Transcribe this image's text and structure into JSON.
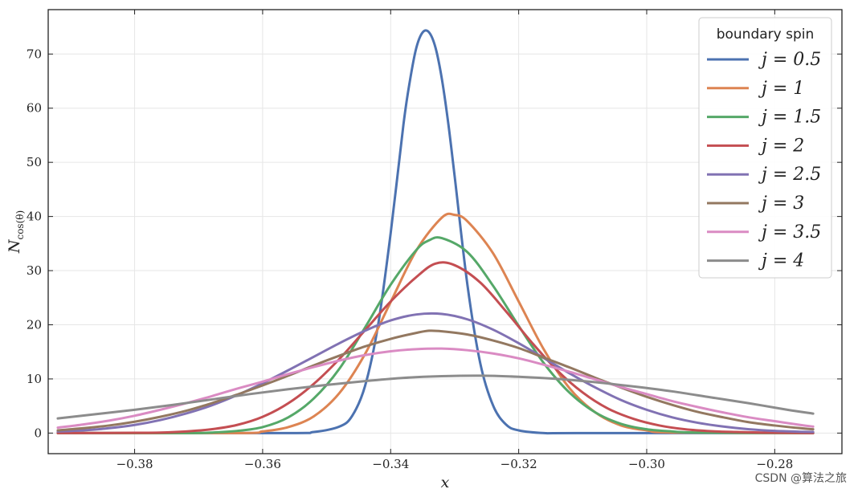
{
  "chart_data": {
    "type": "line",
    "title": "",
    "xlabel": "x",
    "ylabel": "N_cos(θ)",
    "xlim": [
      -0.3935,
      -0.2695
    ],
    "ylim": [
      -3.8,
      78.2
    ],
    "xticks": [
      -0.38,
      -0.36,
      -0.34,
      -0.32,
      -0.3,
      -0.28
    ],
    "xtick_labels": [
      "−0.38",
      "−0.36",
      "−0.34",
      "−0.32",
      "−0.30",
      "−0.28"
    ],
    "yticks": [
      0,
      10,
      20,
      30,
      40,
      50,
      60,
      70
    ],
    "ytick_labels": [
      "0",
      "10",
      "20",
      "30",
      "40",
      "50",
      "60",
      "70"
    ],
    "grid": true,
    "legend": {
      "title": "boundary spin",
      "placement": "top-right"
    },
    "series": [
      {
        "name": "j = 0.5",
        "color": "#4c72b0",
        "x": [
          -0.392,
          -0.357,
          -0.352,
          -0.348,
          -0.346,
          -0.344,
          -0.342,
          -0.34,
          -0.338,
          -0.337,
          -0.336,
          -0.335,
          -0.334,
          -0.333,
          -0.332,
          -0.331,
          -0.33,
          -0.328,
          -0.326,
          -0.324,
          -0.322,
          -0.32,
          -0.316,
          -0.311,
          -0.274
        ],
        "y": [
          0,
          0,
          0.2,
          1.2,
          3.2,
          8.7,
          19.7,
          36.9,
          57,
          65,
          71.1,
          74,
          74,
          71.2,
          65.4,
          57.2,
          47.4,
          27.3,
          12.9,
          5.1,
          1.6,
          0.5,
          0,
          0,
          0
        ]
      },
      {
        "name": "j = 1",
        "color": "#dd8452",
        "x": [
          -0.392,
          -0.364,
          -0.36,
          -0.356,
          -0.352,
          -0.348,
          -0.344,
          -0.34,
          -0.336,
          -0.332,
          -0.33,
          -0.328,
          -0.324,
          -0.32,
          -0.316,
          -0.312,
          -0.308,
          -0.304,
          -0.3,
          -0.296,
          -0.274
        ],
        "y": [
          0,
          0,
          0.3,
          1.1,
          3.1,
          7.4,
          14.6,
          24.2,
          33.7,
          39.8,
          40.3,
          39.1,
          33.2,
          24.3,
          15.3,
          8.2,
          3.8,
          1.4,
          0.5,
          0.1,
          0
        ]
      },
      {
        "name": "j = 1.5",
        "color": "#55a868",
        "x": [
          -0.392,
          -0.372,
          -0.368,
          -0.364,
          -0.36,
          -0.356,
          -0.352,
          -0.348,
          -0.344,
          -0.34,
          -0.336,
          -0.334,
          -0.332,
          -0.328,
          -0.324,
          -0.32,
          -0.316,
          -0.312,
          -0.308,
          -0.304,
          -0.3,
          -0.296,
          -0.292,
          -0.274
        ],
        "y": [
          0,
          0,
          0.1,
          0.4,
          1.1,
          2.9,
          6.4,
          11.9,
          19.5,
          27.4,
          33.8,
          35.6,
          36.0,
          33.4,
          27.2,
          19.8,
          12.8,
          7.4,
          3.8,
          1.7,
          0.7,
          0.3,
          0.1,
          0
        ]
      },
      {
        "name": "j = 2",
        "color": "#c44e52",
        "x": [
          -0.392,
          -0.38,
          -0.376,
          -0.372,
          -0.368,
          -0.364,
          -0.36,
          -0.356,
          -0.352,
          -0.348,
          -0.344,
          -0.34,
          -0.336,
          -0.333,
          -0.33,
          -0.326,
          -0.322,
          -0.318,
          -0.314,
          -0.31,
          -0.306,
          -0.302,
          -0.298,
          -0.294,
          -0.29,
          -0.286,
          -0.282,
          -0.278,
          -0.274
        ],
        "y": [
          0,
          0.05,
          0.1,
          0.3,
          0.7,
          1.5,
          3.0,
          5.5,
          9.1,
          13.7,
          19.0,
          24.3,
          28.8,
          31.3,
          31.0,
          27.8,
          22.5,
          16.8,
          11.6,
          7.5,
          4.5,
          2.6,
          1.4,
          0.7,
          0.35,
          0.2,
          0.1,
          0.05,
          0
        ]
      },
      {
        "name": "j = 2.5",
        "color": "#8172b3",
        "x": [
          -0.392,
          -0.388,
          -0.384,
          -0.38,
          -0.376,
          -0.372,
          -0.368,
          -0.364,
          -0.36,
          -0.356,
          -0.352,
          -0.348,
          -0.344,
          -0.34,
          -0.336,
          -0.332,
          -0.328,
          -0.324,
          -0.32,
          -0.316,
          -0.312,
          -0.308,
          -0.304,
          -0.3,
          -0.296,
          -0.292,
          -0.288,
          -0.284,
          -0.28,
          -0.276,
          -0.274
        ],
        "y": [
          0.3,
          0.5,
          0.9,
          1.5,
          2.4,
          3.6,
          5.1,
          7.0,
          9.2,
          11.6,
          14.1,
          16.6,
          18.9,
          20.8,
          21.9,
          22.0,
          21.0,
          19.1,
          16.6,
          13.8,
          11.0,
          8.4,
          6.1,
          4.3,
          2.9,
          1.9,
          1.2,
          0.7,
          0.4,
          0.25,
          0.2
        ]
      },
      {
        "name": "j = 3",
        "color": "#937860",
        "x": [
          -0.392,
          -0.388,
          -0.384,
          -0.38,
          -0.376,
          -0.372,
          -0.368,
          -0.364,
          -0.36,
          -0.356,
          -0.352,
          -0.348,
          -0.344,
          -0.34,
          -0.336,
          -0.334,
          -0.332,
          -0.328,
          -0.324,
          -0.32,
          -0.316,
          -0.312,
          -0.308,
          -0.304,
          -0.3,
          -0.296,
          -0.292,
          -0.288,
          -0.284,
          -0.28,
          -0.276,
          -0.274
        ],
        "y": [
          0.5,
          0.9,
          1.4,
          2.1,
          3.0,
          4.1,
          5.5,
          7.1,
          8.8,
          10.6,
          12.5,
          14.3,
          16.0,
          17.4,
          18.5,
          18.9,
          18.8,
          18.2,
          17.1,
          15.7,
          13.9,
          12.1,
          10.2,
          8.4,
          6.7,
          5.2,
          3.9,
          2.9,
          2.0,
          1.4,
          0.9,
          0.7
        ]
      },
      {
        "name": "j = 3.5",
        "color": "#da8bc3",
        "x": [
          -0.392,
          -0.388,
          -0.384,
          -0.38,
          -0.376,
          -0.372,
          -0.368,
          -0.364,
          -0.36,
          -0.356,
          -0.352,
          -0.348,
          -0.344,
          -0.34,
          -0.336,
          -0.332,
          -0.328,
          -0.324,
          -0.32,
          -0.316,
          -0.312,
          -0.308,
          -0.304,
          -0.3,
          -0.296,
          -0.292,
          -0.288,
          -0.284,
          -0.28,
          -0.276,
          -0.274
        ],
        "y": [
          1.0,
          1.6,
          2.3,
          3.2,
          4.3,
          5.5,
          6.8,
          8.2,
          9.5,
          10.9,
          12.2,
          13.4,
          14.4,
          15.1,
          15.5,
          15.6,
          15.3,
          14.7,
          13.8,
          12.6,
          11.3,
          9.9,
          8.5,
          7.2,
          5.9,
          4.8,
          3.8,
          2.9,
          2.2,
          1.5,
          1.2
        ]
      },
      {
        "name": "j = 4",
        "color": "#8c8c8c",
        "x": [
          -0.392,
          -0.386,
          -0.38,
          -0.374,
          -0.368,
          -0.362,
          -0.356,
          -0.35,
          -0.344,
          -0.338,
          -0.332,
          -0.326,
          -0.32,
          -0.314,
          -0.308,
          -0.302,
          -0.296,
          -0.29,
          -0.284,
          -0.278,
          -0.274
        ],
        "y": [
          2.7,
          3.5,
          4.3,
          5.2,
          6.2,
          7.2,
          8.1,
          8.9,
          9.6,
          10.2,
          10.5,
          10.6,
          10.4,
          10.0,
          9.4,
          8.6,
          7.7,
          6.6,
          5.5,
          4.3,
          3.6
        ]
      }
    ]
  },
  "watermark": "CSDN @算法之旅"
}
